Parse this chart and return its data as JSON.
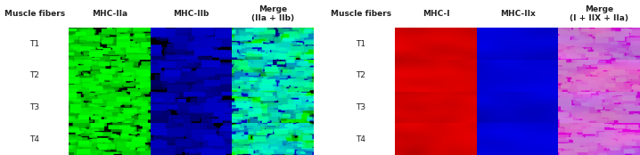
{
  "left_panel": {
    "col_headers": [
      "Muscle fibers",
      "MHC-IIa",
      "MHC-IIb",
      "Merge\n(IIa + IIb)"
    ],
    "row_labels": [
      "T1",
      "T2",
      "T3",
      "T4"
    ],
    "col_colors": [
      "none",
      "#00cc00",
      "#0000cc",
      "merge_gb"
    ],
    "bg_color": "#ffffff",
    "header_bg": "#f0f0f0"
  },
  "right_panel": {
    "col_headers": [
      "Muscle fibers",
      "MHC-I",
      "MHC-IIx",
      "Merge\n(I + IIX + IIa)"
    ],
    "row_labels": [
      "T1",
      "T2",
      "T3",
      "T4"
    ],
    "col_colors": [
      "none",
      "#cc0000",
      "#0000cc",
      "merge_rgb"
    ],
    "bg_color": "#ffffff",
    "header_bg": "#f0f0f0"
  },
  "figure_bg": "#ffffff",
  "header_fontsize": 6.5,
  "label_fontsize": 6.5,
  "text_color": "#222222",
  "border_color": "#aaaaaa",
  "divider_color": "#cccccc"
}
